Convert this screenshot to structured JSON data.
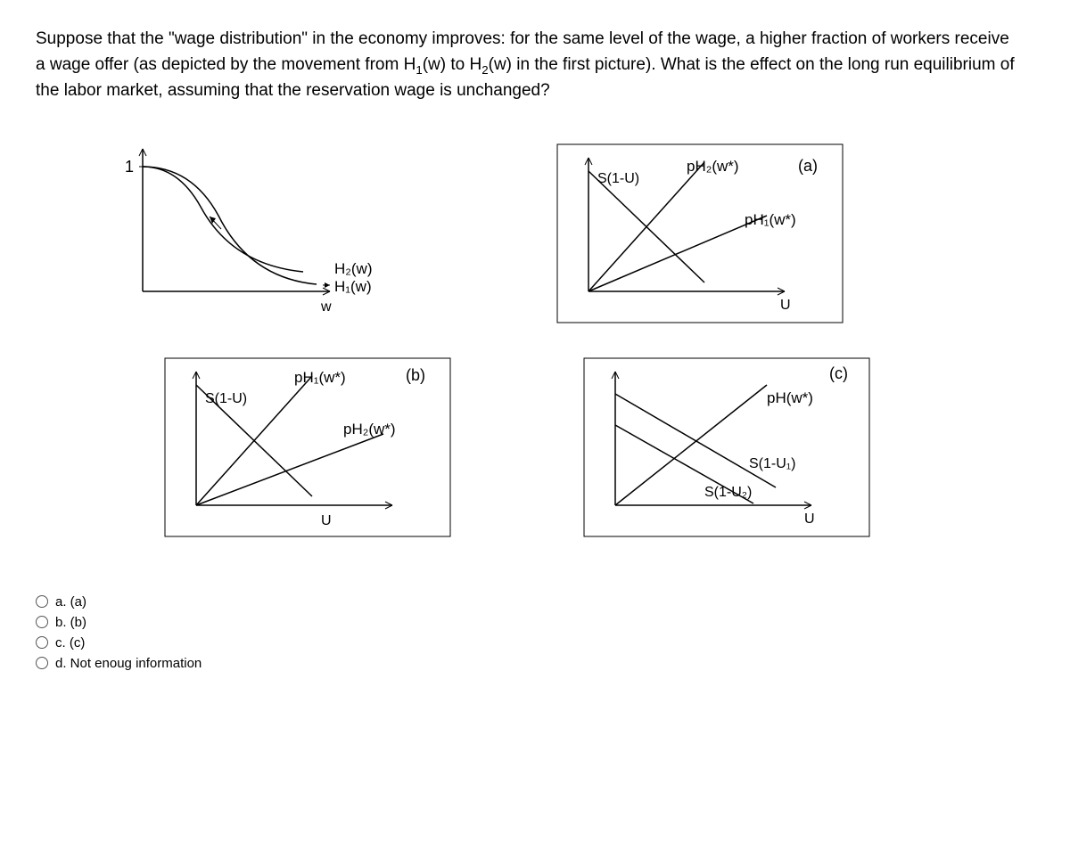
{
  "question_html": "Suppose that the \"wage distribution\" in the economy improves: for the same level of the wage, a higher fraction of workers receive a wage offer (as depicted by the movement from H<sub class='sub'>1</sub>(w) to H<sub class='sub'>2</sub>(w) in the first picture). What is the effect on the long run equilibrium of the labor market, assuming that the reservation wage is unchanged?",
  "panel1": {
    "y_label": "1",
    "x_label": "w",
    "curve_upper": "H₂(w)",
    "curve_lower": "H₁(w)"
  },
  "panel_a": {
    "tag": "(a)",
    "down_line": "S(1-U)",
    "steep_line": "pH₂(w*)",
    "flat_line": "pH₁(w*)",
    "x_label": "U"
  },
  "panel_b": {
    "tag": "(b)",
    "down_line": "S(1-U)",
    "steep_line": "pH₁(w*)",
    "flat_line": "pH₂(w*)",
    "x_label": "U"
  },
  "panel_c": {
    "tag": "(c)",
    "up_line": "pH(w*)",
    "down_upper": "S(1-U₁)",
    "down_lower": "S(1-U₂)",
    "x_label": "U"
  },
  "answers": [
    {
      "key": "a",
      "label": "a. (a)"
    },
    {
      "key": "b",
      "label": "b. (b)"
    },
    {
      "key": "c",
      "label": "c. (c)"
    },
    {
      "key": "d",
      "label": "d. Not enoug information"
    }
  ],
  "colors": {
    "stroke": "#000000",
    "text": "#000000",
    "border": "#000000"
  }
}
